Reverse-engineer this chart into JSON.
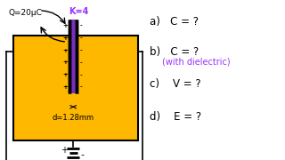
{
  "bg_color": "#ffffff",
  "box_color": "#FFB800",
  "dielectric_color": "#7B2FBE",
  "label_Q": "Q=20μC",
  "label_K": "K=4",
  "label_d": "d=1.28mm",
  "label_V": "V = ?",
  "label_a": "a)   C = ?",
  "label_b": "b)   C = ?",
  "label_b2": "(with dielectric)",
  "label_c": "c)    V = ?",
  "label_d_text": "d)    E = ?",
  "k_color": "#9933FF",
  "b2_color": "#9933FF"
}
